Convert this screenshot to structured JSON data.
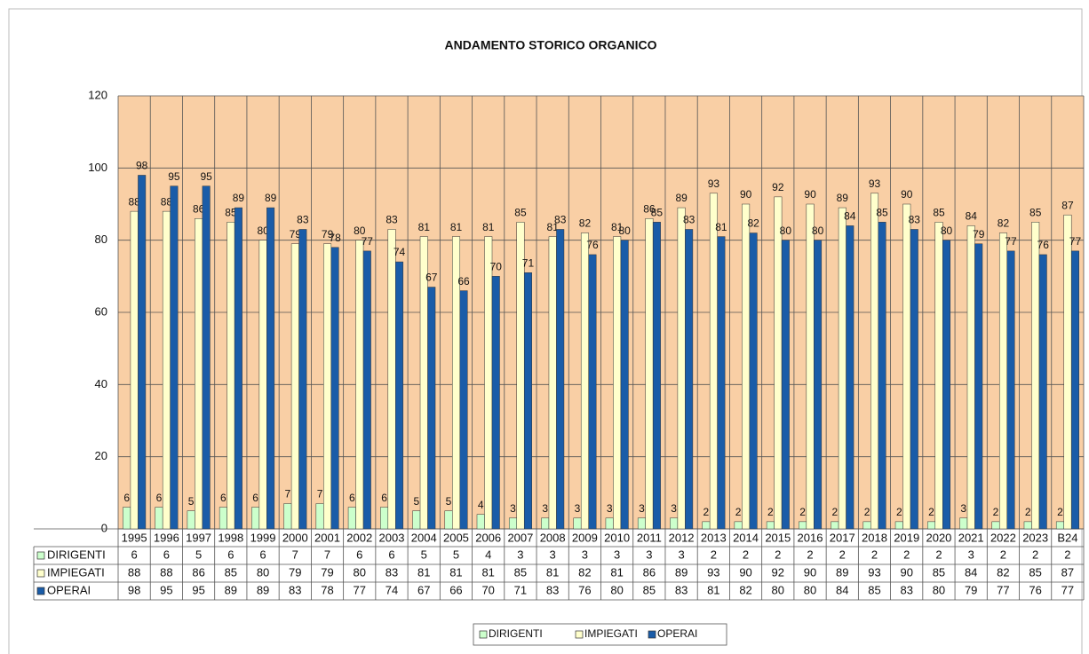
{
  "chart_data": {
    "type": "bar",
    "title": "ANDAMENTO STORICO ORGANICO",
    "categories": [
      "1995",
      "1996",
      "1997",
      "1998",
      "1999",
      "2000",
      "2001",
      "2002",
      "2003",
      "2004",
      "2005",
      "2006",
      "2007",
      "2008",
      "2009",
      "2010",
      "2011",
      "2012",
      "2013",
      "2014",
      "2015",
      "2016",
      "2017",
      "2018",
      "2019",
      "2020",
      "2021",
      "2022",
      "2023",
      "B24"
    ],
    "series": [
      {
        "name": "DIRIGENTI",
        "color": "#ccffcc",
        "values": [
          6,
          6,
          5,
          6,
          6,
          7,
          7,
          6,
          6,
          5,
          5,
          4,
          3,
          3,
          3,
          3,
          3,
          3,
          2,
          2,
          2,
          2,
          2,
          2,
          2,
          2,
          3,
          2,
          2,
          2
        ]
      },
      {
        "name": "IMPIEGATI",
        "color": "#ffffcc",
        "values": [
          88,
          88,
          86,
          85,
          80,
          79,
          79,
          80,
          83,
          81,
          81,
          81,
          85,
          81,
          82,
          81,
          86,
          89,
          93,
          90,
          92,
          90,
          89,
          93,
          90,
          85,
          84,
          82,
          85,
          87
        ]
      },
      {
        "name": "OPERAI",
        "color": "#1a5ca8",
        "values": [
          98,
          95,
          95,
          89,
          89,
          83,
          78,
          77,
          74,
          67,
          66,
          70,
          71,
          83,
          76,
          80,
          85,
          83,
          81,
          82,
          80,
          80,
          84,
          85,
          83,
          80,
          79,
          77,
          76,
          77
        ]
      }
    ],
    "ylim": [
      0,
      120
    ],
    "yticks": [
      0,
      20,
      40,
      60,
      80,
      100,
      120
    ],
    "grid": true,
    "plot_color": "#f9cfa5"
  }
}
